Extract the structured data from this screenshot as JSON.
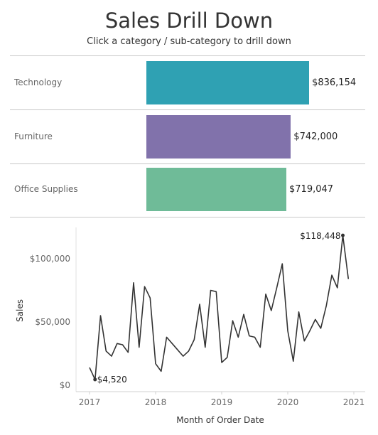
{
  "header": {
    "title": "Sales Drill Down",
    "subtitle": "Click a category / sub-category to drill down"
  },
  "colors": {
    "technology": "#2fa1b3",
    "furniture": "#8172ab",
    "office_supplies": "#6fbb98",
    "line": "#333333"
  },
  "chart_data": [
    {
      "type": "bar",
      "orientation": "horizontal",
      "categories": [
        "Technology",
        "Furniture",
        "Office Supplies"
      ],
      "values": [
        836154,
        742000,
        719047
      ],
      "value_labels": [
        "$836,154",
        "$742,000",
        "$719,047"
      ],
      "xlim": [
        0,
        1000000
      ]
    },
    {
      "type": "line",
      "xlabel": "Month of Order Date",
      "ylabel": "Sales",
      "ylim": [
        0,
        125000
      ],
      "yticks": [
        0,
        50000,
        100000
      ],
      "ytick_labels": [
        "$0",
        "$50,000",
        "$100,000"
      ],
      "xticks": [
        "2017",
        "2018",
        "2019",
        "2020",
        "2021"
      ],
      "grid": false,
      "annotations": [
        {
          "x": "2017-02",
          "label": "$4,520"
        },
        {
          "x": "2020-11",
          "label": "$118,448"
        }
      ],
      "x": [
        "2017-01",
        "2017-02",
        "2017-03",
        "2017-04",
        "2017-05",
        "2017-06",
        "2017-07",
        "2017-08",
        "2017-09",
        "2017-10",
        "2017-11",
        "2017-12",
        "2018-01",
        "2018-02",
        "2018-03",
        "2018-04",
        "2018-05",
        "2018-06",
        "2018-07",
        "2018-08",
        "2018-09",
        "2018-10",
        "2018-11",
        "2018-12",
        "2019-01",
        "2019-02",
        "2019-03",
        "2019-04",
        "2019-05",
        "2019-06",
        "2019-07",
        "2019-08",
        "2019-09",
        "2019-10",
        "2019-11",
        "2019-12",
        "2020-01",
        "2020-02",
        "2020-03",
        "2020-04",
        "2020-05",
        "2020-06",
        "2020-07",
        "2020-08",
        "2020-09",
        "2020-10",
        "2020-11",
        "2020-12"
      ],
      "values": [
        14000,
        4520,
        55000,
        27000,
        23000,
        33000,
        32000,
        26000,
        81000,
        30000,
        78000,
        69000,
        17000,
        11000,
        38000,
        33000,
        28000,
        23000,
        27000,
        36000,
        64000,
        30000,
        75000,
        74000,
        18000,
        22000,
        51000,
        38000,
        56000,
        39000,
        38000,
        30000,
        72000,
        59000,
        77000,
        96000,
        43000,
        19000,
        58000,
        35000,
        43000,
        52000,
        45000,
        63000,
        87000,
        77000,
        118448,
        84000
      ]
    }
  ]
}
